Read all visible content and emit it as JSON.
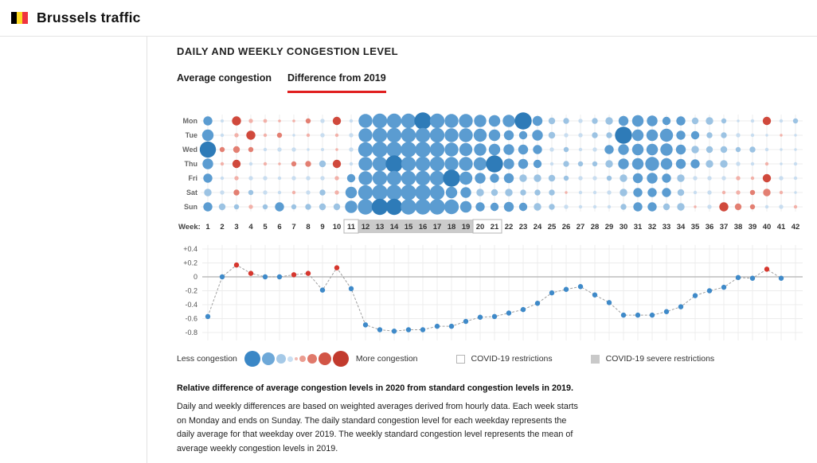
{
  "header": {
    "title": "Brussels traffic",
    "flag_colors": [
      "#000000",
      "#fdda24",
      "#ef3340"
    ]
  },
  "panel": {
    "title": "DAILY AND WEEKLY CONGESTION LEVEL",
    "accent_color": "#e01f1f",
    "tabs": [
      {
        "label": "Average congestion",
        "active": false
      },
      {
        "label": "Difference from 2019",
        "active": true
      }
    ]
  },
  "palette": {
    "blue_dark": "#2e7bb8",
    "blue_mid": "#5b9cd1",
    "blue_light": "#9cc3e3",
    "blue_faint": "#c8ddf0",
    "red_dark": "#d0493c",
    "red_mid": "#e37f72",
    "red_light": "#f2b1a9",
    "grid": "#ececec",
    "zero_line": "#bdbdbd",
    "line": "#a0a0a0",
    "point_blue": "#3f8ac9",
    "point_red": "#d6372e",
    "box_gray": "#cbcbcb",
    "box_border": "#b5b5b5",
    "tick_text": "#555555",
    "week_text": "#333333",
    "day_text": "#666666"
  },
  "chart_data": [
    {
      "type": "heatmap",
      "name": "daily-congestion-difference-bubbles",
      "description": "Bubble matrix: relative difference of daily congestion in 2020 vs 2019. Negative = less congestion (blue), positive = more congestion (red). Bubble size = magnitude.",
      "rows": [
        "Mon",
        "Tue",
        "Wed",
        "Thu",
        "Fri",
        "Sat",
        "Sun"
      ],
      "week_axis_label": "Week:",
      "weeks": [
        1,
        2,
        3,
        4,
        5,
        6,
        7,
        8,
        9,
        10,
        11,
        12,
        13,
        14,
        15,
        16,
        17,
        18,
        19,
        20,
        21,
        22,
        23,
        24,
        25,
        26,
        27,
        28,
        29,
        30,
        31,
        32,
        33,
        34,
        35,
        36,
        37,
        38,
        39,
        40,
        41,
        42
      ],
      "covid_restriction_weeks": [
        [
          11,
          11
        ],
        [
          20,
          21
        ]
      ],
      "covid_severe_weeks": [
        [
          12,
          19
        ]
      ],
      "values": [
        [
          -0.45,
          -0.08,
          0.45,
          0.15,
          0.12,
          0.06,
          0.06,
          0.2,
          -0.15,
          0.4,
          -0.1,
          -0.75,
          -0.8,
          -0.8,
          -0.8,
          -0.95,
          -0.8,
          -0.75,
          -0.75,
          -0.65,
          -0.6,
          -0.65,
          -0.95,
          -0.5,
          -0.3,
          -0.25,
          -0.15,
          -0.25,
          -0.35,
          -0.5,
          -0.6,
          -0.55,
          -0.4,
          -0.45,
          -0.3,
          -0.35,
          -0.2,
          -0.05,
          -0.1,
          0.4,
          -0.1,
          -0.2
        ],
        [
          -0.6,
          -0.1,
          0.15,
          0.45,
          0.1,
          0.2,
          -0.05,
          0.1,
          -0.15,
          0.1,
          -0.15,
          -0.75,
          -0.8,
          -0.8,
          -0.8,
          -0.8,
          -0.8,
          -0.75,
          -0.75,
          -0.7,
          -0.6,
          -0.5,
          -0.4,
          -0.55,
          -0.3,
          -0.15,
          -0.15,
          -0.25,
          -0.25,
          -0.95,
          -0.6,
          -0.6,
          -0.7,
          -0.45,
          -0.4,
          -0.25,
          -0.25,
          -0.15,
          -0.1,
          -0.05,
          0.05,
          -0.05
        ],
        [
          -0.9,
          0.2,
          0.3,
          0.2,
          -0.1,
          -0.15,
          -0.15,
          -0.05,
          -0.08,
          0.05,
          -0.15,
          -0.8,
          -0.85,
          -0.85,
          -0.85,
          -0.85,
          -0.8,
          -0.75,
          -0.7,
          -0.65,
          -0.6,
          -0.55,
          -0.5,
          -0.45,
          -0.15,
          -0.2,
          -0.1,
          -0.15,
          -0.45,
          -0.55,
          -0.6,
          -0.6,
          -0.65,
          -0.5,
          -0.35,
          -0.3,
          -0.3,
          -0.2,
          -0.25,
          -0.1,
          -0.05,
          -0.05
        ],
        [
          -0.55,
          0.1,
          0.4,
          -0.1,
          0.1,
          0.05,
          0.2,
          0.25,
          -0.3,
          0.4,
          -0.1,
          -0.75,
          -0.8,
          -0.95,
          -0.8,
          -0.8,
          -0.8,
          -0.75,
          -0.75,
          -0.7,
          -0.95,
          -0.55,
          -0.5,
          -0.4,
          -0.1,
          -0.25,
          -0.2,
          -0.2,
          -0.35,
          -0.55,
          -0.6,
          -0.75,
          -0.6,
          -0.5,
          -0.45,
          -0.35,
          -0.35,
          -0.15,
          -0.1,
          0.1,
          -0.05,
          -0.1
        ],
        [
          -0.45,
          -0.1,
          0.15,
          -0.15,
          -0.15,
          -0.1,
          -0.15,
          -0.15,
          -0.15,
          0.15,
          -0.4,
          -0.75,
          -0.8,
          -0.8,
          -0.8,
          -0.8,
          -0.8,
          -0.95,
          -0.7,
          -0.55,
          -0.45,
          -0.5,
          -0.35,
          -0.35,
          -0.3,
          -0.2,
          -0.15,
          -0.15,
          -0.2,
          -0.35,
          -0.5,
          -0.55,
          -0.45,
          -0.35,
          -0.15,
          -0.15,
          -0.15,
          0.15,
          0.1,
          0.4,
          -0.15,
          -0.1
        ],
        [
          -0.35,
          -0.15,
          0.25,
          -0.2,
          -0.15,
          -0.1,
          0.1,
          -0.15,
          -0.25,
          0.15,
          -0.6,
          -0.8,
          -0.85,
          -0.85,
          -0.85,
          -0.85,
          -0.8,
          -0.6,
          -0.55,
          -0.35,
          -0.3,
          -0.35,
          -0.25,
          -0.25,
          -0.25,
          0.05,
          -0.1,
          -0.1,
          -0.15,
          -0.35,
          -0.45,
          -0.45,
          -0.45,
          -0.3,
          -0.1,
          -0.15,
          0.1,
          0.15,
          0.2,
          0.35,
          0.1,
          -0.05
        ],
        [
          -0.45,
          -0.3,
          -0.2,
          0.15,
          -0.2,
          -0.45,
          -0.2,
          -0.25,
          -0.3,
          -0.3,
          -0.65,
          -0.85,
          -0.9,
          -0.9,
          -0.85,
          -0.85,
          -0.85,
          -0.8,
          -0.6,
          -0.45,
          -0.4,
          -0.5,
          -0.4,
          -0.35,
          -0.25,
          -0.15,
          -0.1,
          -0.1,
          -0.1,
          -0.25,
          -0.45,
          -0.45,
          -0.3,
          -0.35,
          0.05,
          -0.15,
          0.45,
          0.3,
          0.2,
          -0.1,
          -0.15,
          0.1
        ]
      ]
    },
    {
      "type": "line",
      "name": "weekly-congestion-difference-line",
      "description": "Weekly average difference of congestion in 2020 vs 2019. Blue points = less/equal congestion, red points = more congestion.",
      "x": [
        1,
        2,
        3,
        4,
        5,
        6,
        7,
        8,
        9,
        10,
        11,
        12,
        13,
        14,
        15,
        16,
        17,
        18,
        19,
        20,
        21,
        22,
        23,
        24,
        25,
        26,
        27,
        28,
        29,
        30,
        31,
        32,
        33,
        34,
        35,
        36,
        37,
        38,
        39,
        40,
        41
      ],
      "values": [
        -0.57,
        0,
        0.17,
        0.05,
        0,
        0,
        0.03,
        0.05,
        -0.19,
        0.13,
        -0.17,
        -0.69,
        -0.76,
        -0.78,
        -0.76,
        -0.76,
        -0.71,
        -0.71,
        -0.64,
        -0.58,
        -0.57,
        -0.52,
        -0.47,
        -0.38,
        -0.23,
        -0.18,
        -0.14,
        -0.26,
        -0.37,
        -0.55,
        -0.55,
        -0.55,
        -0.5,
        -0.43,
        -0.27,
        -0.2,
        -0.15,
        -0.01,
        -0.02,
        0.11,
        -0.02
      ],
      "yticks": [
        {
          "label": "+0.4",
          "v": 0.4
        },
        {
          "label": "+0.2",
          "v": 0.2
        },
        {
          "label": "0",
          "v": 0
        },
        {
          "label": "-0.2",
          "v": -0.2
        },
        {
          "label": "-0.4",
          "v": -0.4
        },
        {
          "label": "-0.6",
          "v": -0.6
        },
        {
          "label": "-0.8",
          "v": -0.8
        }
      ],
      "ylim": [
        -0.9,
        0.5
      ],
      "grid": true,
      "legend_position": "below"
    }
  ],
  "legend": {
    "less_label": "Less congestion",
    "more_label": "More congestion",
    "scale": [
      {
        "d": 20,
        "color": "#3a87c6"
      },
      {
        "d": 16,
        "color": "#6da8d8"
      },
      {
        "d": 12,
        "color": "#a5c9e7"
      },
      {
        "d": 7,
        "color": "#cadff2"
      },
      {
        "d": 4,
        "color": "#f0b9b2"
      },
      {
        "d": 8,
        "color": "#eb9c90"
      },
      {
        "d": 12,
        "color": "#e0796b"
      },
      {
        "d": 16,
        "color": "#d25546"
      },
      {
        "d": 20,
        "color": "#c23a2d"
      }
    ],
    "covid": [
      {
        "label": "COVID-19 restrictions",
        "fill": "#ffffff",
        "border": "#b5b5b5"
      },
      {
        "label": "COVID-19 severe restrictions",
        "fill": "#c9c9c9",
        "border": "#c9c9c9"
      }
    ]
  },
  "footer": {
    "lead": "Relative difference of average congestion levels in 2020 from standard congestion levels in 2019.",
    "body": "Daily and weekly differences are based on weighted averages derived from hourly data. Each week starts on Monday and ends on Sunday. The daily standard congestion level for each weekday represents the daily average for that weekday over 2019. The weekly standard congestion level represents the mean of average weekly congestion levels in 2019."
  }
}
